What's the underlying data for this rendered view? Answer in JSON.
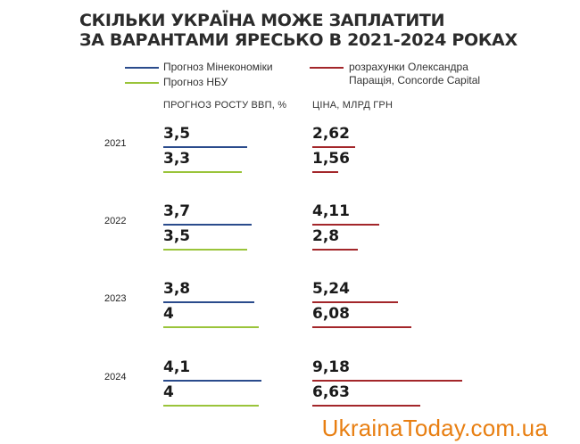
{
  "title": {
    "line1": "СКІЛЬКИ УКРАЇНА МОЖЕ ЗАПЛАТИТИ",
    "line2": "ЗА ВАРАНТАМИ ЯРЕСЬКО В 2021-2024 РОКАХ"
  },
  "legend": [
    {
      "label": "Прогноз Мінекономіки",
      "color": "#2a4b8c"
    },
    {
      "label": "Прогноз НБУ",
      "color": "#9ac43a"
    },
    {
      "label_line1": "розрахунки Олександра",
      "label_line2": "Паращія, Concorde Capital",
      "color": "#a3262a"
    }
  ],
  "chart_data": [
    {
      "type": "bar",
      "title": "ПРОГНОЗ РОСТУ ВВП, %",
      "categories": [
        "2021",
        "2022",
        "2023",
        "2024"
      ],
      "series": [
        {
          "name": "Прогноз Мінекономіки",
          "values": [
            "3,5",
            "3,7",
            "3,8",
            "4,1"
          ],
          "numeric": [
            3.5,
            3.7,
            3.8,
            4.1
          ],
          "color": "#2a4b8c"
        },
        {
          "name": "Прогноз НБУ",
          "values": [
            "3,3",
            "3,5",
            "4",
            "4"
          ],
          "numeric": [
            3.3,
            3.5,
            4.0,
            4.0
          ],
          "color": "#9ac43a"
        }
      ]
    },
    {
      "type": "bar",
      "title": "ЦІНА, МЛРД ГРН",
      "categories": [
        "2021",
        "2022",
        "2023",
        "2024"
      ],
      "series": [
        {
          "name": "розрахунки Олександра Паращія, Concorde Capital",
          "values": [
            "2,62",
            "4,11",
            "5,24",
            "9,18"
          ],
          "numeric": [
            2.62,
            4.11,
            5.24,
            9.18
          ],
          "color": "#a3262a"
        },
        {
          "name": "",
          "values": [
            "1,56",
            "2,8",
            "6,08",
            "6,63"
          ],
          "numeric": [
            1.56,
            2.8,
            6.08,
            6.63
          ],
          "color": "#a3262a"
        }
      ]
    }
  ],
  "watermark": "UkrainaToday.com.ua"
}
